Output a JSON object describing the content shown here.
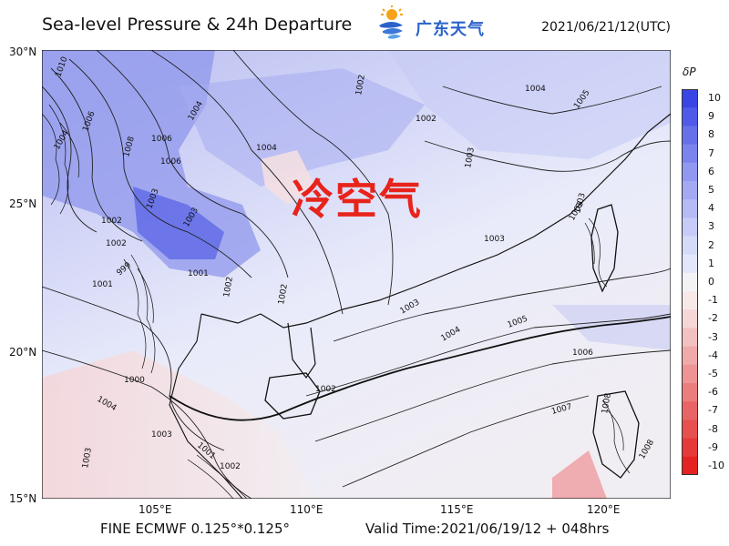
{
  "title": "Sea-level Pressure & 24h Departure",
  "logo_text": "广东天气",
  "init_time": "2021/06/21/12(UTC)",
  "overlay_text": "冷空气",
  "footer": {
    "model": "FINE ECMWF 0.125°*0.125°",
    "valid_time": "Valid Time:2021/06/19/12 + 048hrs"
  },
  "axes": {
    "lat_labels": [
      "30°N",
      "25°N",
      "20°N",
      "15°N"
    ],
    "lon_labels": [
      "105°E",
      "110°E",
      "115°E",
      "120°E"
    ]
  },
  "colorbar": {
    "title": "δP",
    "ticks": [
      "10",
      "9",
      "8",
      "7",
      "6",
      "5",
      "4",
      "3",
      "2",
      "1",
      "0",
      "-1",
      "-2",
      "-3",
      "-4",
      "-5",
      "-6",
      "-7",
      "-8",
      "-9",
      "-10"
    ],
    "colors": [
      "#3a45e6",
      "#4f5ae9",
      "#6670ea",
      "#7b84ee",
      "#9098f0",
      "#a3aaf3",
      "#b5bbf5",
      "#c6cbf8",
      "#d6daf9",
      "#e4e7fb",
      "#f3f3f6",
      "#f8e9e9",
      "#f6d6d6",
      "#f3c1c1",
      "#f0aaaa",
      "#ee9494",
      "#ec7d7d",
      "#e96565",
      "#e84f4f",
      "#e63939",
      "#e52222"
    ]
  },
  "contour_labels": [
    "1010",
    "1008",
    "1006",
    "1004",
    "1002",
    "1000",
    "1003",
    "1001",
    "1005",
    "1006",
    "1007",
    "999"
  ]
}
